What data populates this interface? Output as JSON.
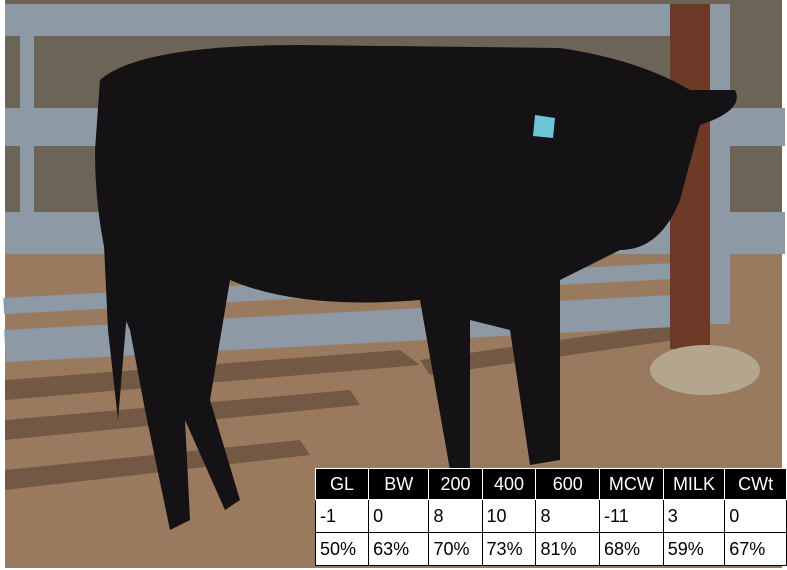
{
  "table": {
    "header": [
      "GL",
      "BW",
      "200",
      "400",
      "600",
      "MCW",
      "MILK",
      "CWt"
    ],
    "rows": [
      [
        "-1",
        "0",
        "8",
        "10",
        "8",
        "-11",
        "3",
        "0"
      ],
      [
        "50%",
        "63%",
        "70%",
        "73%",
        "81%",
        "68%",
        "59%",
        "67%"
      ]
    ]
  }
}
